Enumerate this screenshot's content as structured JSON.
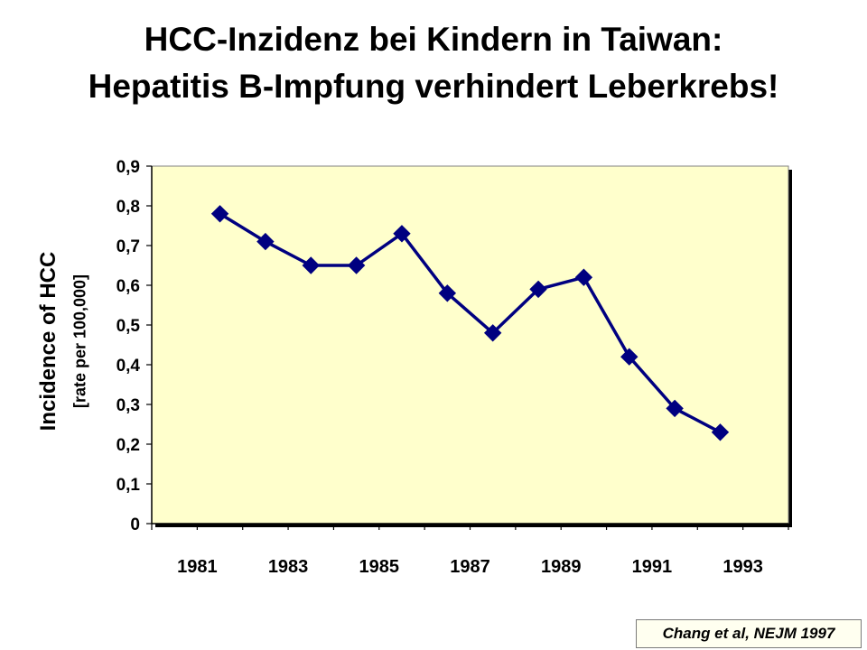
{
  "title_line1": "HCC-Inzidenz bei Kindern in Taiwan:",
  "title_line2": "Hepatitis B-Impfung verhindert Leberkrebs!",
  "citation": "Chang et al, NEJM 1997",
  "colors": {
    "plot_background": "#ffffcc",
    "series_line": "#000080",
    "marker": "#000080"
  },
  "chart_data": {
    "type": "line",
    "title": "HCC-Inzidenz bei Kindern in Taiwan: Hepatitis B-Impfung verhindert Leberkrebs!",
    "ylabel": "Incidence of HCC",
    "ylabel_sub": "[rate per 100,000]",
    "xlabel": "",
    "ylim": [
      0,
      0.9
    ],
    "y_ticks": [
      "0",
      "0,1",
      "0,2",
      "0,3",
      "0,4",
      "0,5",
      "0,6",
      "0,7",
      "0,8",
      "0,9"
    ],
    "x_tick_labels": [
      "1981",
      "1983",
      "1985",
      "1987",
      "1989",
      "1991",
      "1993"
    ],
    "x_category_count": 14,
    "x": [
      1981,
      1982,
      1983,
      1984,
      1985,
      1986,
      1987,
      1988,
      1989,
      1990,
      1991,
      1992
    ],
    "series": [
      {
        "values": [
          0.78,
          0.71,
          0.65,
          0.65,
          0.73,
          0.58,
          0.48,
          0.59,
          0.62,
          0.42,
          0.29,
          0.23
        ],
        "marker": "diamond"
      }
    ],
    "grid": false,
    "legend": "none"
  }
}
